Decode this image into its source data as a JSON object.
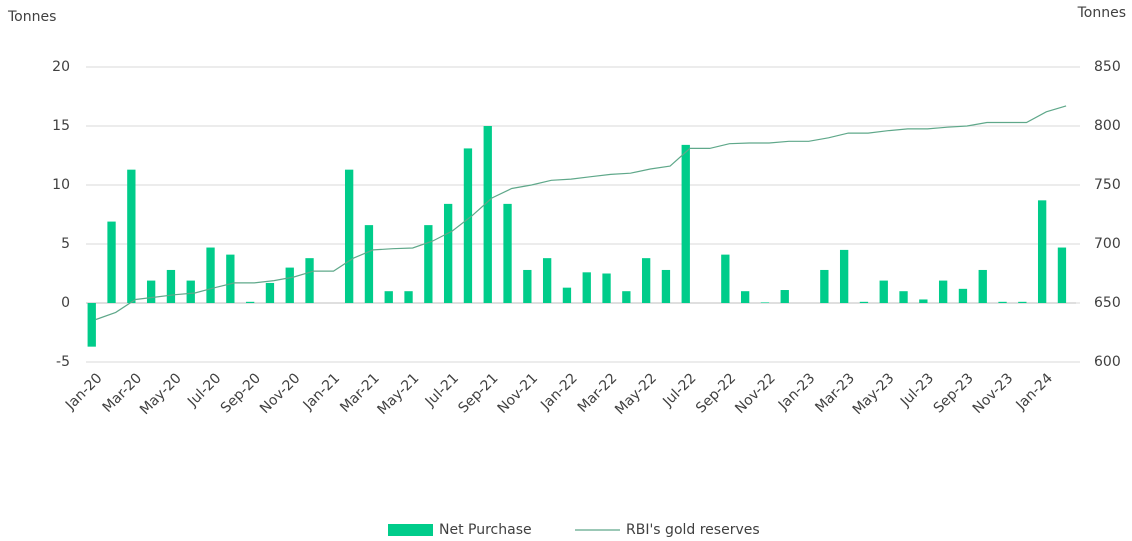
{
  "chart_data": {
    "type": "bar",
    "y_label": "Tonnes",
    "y2_label": "Tonnes",
    "categories": [
      "Jan-20",
      null,
      "Mar-20",
      null,
      "May-20",
      null,
      "Jul-20",
      null,
      "Sep-20",
      null,
      "Nov-20",
      null,
      "Jan-21",
      null,
      "Mar-21",
      null,
      "May-21",
      null,
      "Jul-21",
      null,
      "Sep-21",
      null,
      "Nov-21",
      null,
      "Jan-22",
      null,
      "Mar-22",
      null,
      "May-22",
      null,
      "Jul-22",
      null,
      "Sep-22",
      null,
      "Nov-22",
      null,
      "Jan-23",
      null,
      "Mar-23",
      null,
      "May-23",
      null,
      "Jul-23",
      null,
      "Sep-23",
      null,
      "Nov-23",
      null,
      "Jan-24",
      null
    ],
    "series": [
      {
        "name": "Net Purchase",
        "type": "bar",
        "color": "#00cc8a",
        "values": [
          -3.7,
          6.9,
          11.3,
          1.9,
          2.8,
          1.9,
          4.7,
          4.1,
          0.1,
          1.7,
          3.0,
          3.8,
          0,
          11.3,
          6.6,
          1.0,
          1.0,
          6.6,
          8.4,
          13.1,
          15.0,
          8.4,
          2.8,
          3.8,
          1.3,
          2.6,
          2.5,
          1.0,
          3.8,
          2.8,
          13.4,
          0,
          4.1,
          1.0,
          0.05,
          1.1,
          0,
          2.8,
          4.5,
          0.1,
          1.9,
          1.0,
          0.3,
          1.9,
          1.2,
          2.8,
          0.1,
          0.1,
          8.7,
          4.7
        ]
      },
      {
        "name": "RBI's gold reserves",
        "type": "line",
        "axis": "y2",
        "color": "#5fa88a",
        "values": [
          636,
          642,
          653,
          655,
          657,
          658.5,
          663,
          667,
          667,
          669,
          672,
          677,
          677,
          688,
          695,
          696,
          696.6,
          702.5,
          711,
          724,
          739,
          747,
          750,
          754,
          755,
          757,
          759,
          760,
          763.6,
          766,
          781,
          781,
          785,
          785.6,
          785.6,
          787,
          787,
          790,
          794,
          794,
          796,
          797.5,
          797.5,
          799,
          800,
          803,
          803,
          803,
          812,
          817
        ]
      }
    ],
    "ylim": [
      -5,
      20
    ],
    "yticks": [
      -5,
      0,
      5,
      10,
      15,
      20
    ],
    "y2lim": [
      600,
      850
    ],
    "y2ticks": [
      600,
      650,
      700,
      750,
      800,
      850
    ],
    "grid": true,
    "legend": "bottom"
  }
}
